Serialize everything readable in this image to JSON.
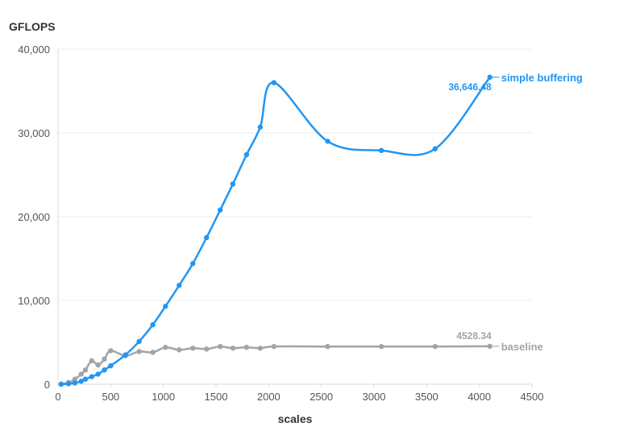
{
  "chart_data": {
    "type": "line",
    "title": "",
    "xlabel": "scales",
    "ylabel": "GFLOPS",
    "xlim": [
      0,
      4500
    ],
    "ylim": [
      0,
      40000
    ],
    "x_ticks": [
      "0",
      "500",
      "1000",
      "1500",
      "2000",
      "2500",
      "3000",
      "3500",
      "4000",
      "4500"
    ],
    "y_ticks": [
      "0",
      "10,000",
      "20,000",
      "30,000",
      "40,000"
    ],
    "grid": "horizontal",
    "legend": "inline labels at line ends",
    "series": [
      {
        "name": "simple buffering",
        "color": "#2196f3",
        "end_label": "36,646.48",
        "x": [
          30,
          100,
          160,
          220,
          260,
          320,
          380,
          440,
          500,
          640,
          770,
          900,
          1020,
          1150,
          1280,
          1410,
          1540,
          1660,
          1790,
          1920,
          2050,
          2560,
          3070,
          3580,
          4100
        ],
        "y": [
          0,
          50,
          150,
          350,
          600,
          900,
          1200,
          1700,
          2200,
          3500,
          5100,
          7100,
          9300,
          11800,
          14400,
          17500,
          20800,
          23900,
          27400,
          30700,
          36000,
          29000,
          27900,
          28100,
          36646.48
        ]
      },
      {
        "name": "baseline",
        "color": "#a3a3a8",
        "end_label": "4528.34",
        "x": [
          30,
          100,
          160,
          220,
          260,
          320,
          380,
          440,
          500,
          640,
          770,
          900,
          1020,
          1150,
          1280,
          1410,
          1540,
          1660,
          1790,
          1920,
          2050,
          2560,
          3070,
          3580,
          4100
        ],
        "y": [
          0,
          200,
          600,
          1200,
          1700,
          2800,
          2300,
          3000,
          4000,
          3400,
          3900,
          3800,
          4400,
          4100,
          4300,
          4200,
          4500,
          4300,
          4400,
          4300,
          4500,
          4500,
          4500,
          4500,
          4528.34
        ]
      }
    ]
  }
}
